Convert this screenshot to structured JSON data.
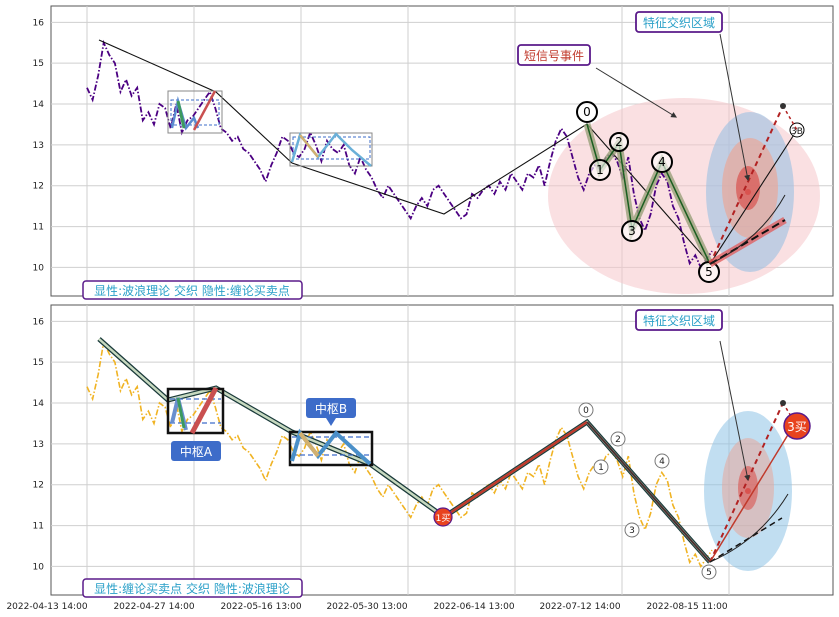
{
  "chart_data": [
    {
      "type": "line",
      "title": "",
      "legend_text": "显性:波浪理论 交织 隐性:缠论买卖点",
      "annotation_short_signal": "短信号事件",
      "annotation_region": "特征交织区域",
      "ylim": [
        9.3,
        16.4
      ],
      "yticks": [
        "10",
        "11",
        "12",
        "13",
        "14",
        "15",
        "16"
      ],
      "grid": true,
      "wave_labels": [
        "0",
        "1",
        "2",
        "3",
        "4",
        "5",
        "3B"
      ],
      "series": [
        {
          "style": "dashdot-purple",
          "x": [
            0,
            1,
            2,
            3,
            4,
            5,
            6,
            7,
            8,
            9,
            10,
            11,
            12,
            13,
            14,
            15,
            16,
            17,
            18,
            19,
            20,
            21,
            22,
            23,
            24,
            25,
            26,
            27,
            28,
            29,
            30,
            31,
            32,
            33,
            34,
            35,
            36,
            37,
            38,
            39,
            40,
            41,
            42,
            43,
            44,
            45,
            46,
            47,
            48,
            49,
            50,
            51,
            52,
            53,
            54,
            55,
            56,
            57,
            58,
            59,
            60,
            61,
            62,
            63,
            64,
            65,
            66,
            67,
            68,
            69,
            70,
            71,
            72,
            73,
            74,
            75,
            76,
            77,
            78,
            79,
            80,
            81,
            82,
            83,
            84,
            85,
            86,
            87,
            88,
            89,
            90,
            91,
            92,
            93,
            94,
            95,
            96,
            97,
            98,
            99,
            100,
            101,
            102,
            103,
            104,
            105,
            106,
            107,
            108,
            109,
            110,
            111,
            112
          ],
          "y": [
            14.4,
            14.1,
            14.7,
            15.5,
            15.2,
            15.0,
            14.3,
            14.6,
            14.2,
            14.4,
            13.6,
            13.8,
            13.5,
            14.0,
            13.9,
            13.4,
            14.0,
            13.3,
            13.6,
            13.7,
            13.9,
            14.1,
            14.3,
            13.9,
            13.4,
            13.3,
            13.1,
            13.2,
            12.9,
            12.8,
            12.6,
            12.4,
            12.1,
            12.5,
            12.8,
            13.2,
            13.1,
            12.8,
            12.7,
            12.9,
            13.3,
            13.0,
            12.6,
            13.1,
            12.9,
            12.8,
            13.0,
            12.5,
            12.3,
            12.7,
            12.4,
            12.2,
            11.9,
            11.7,
            12.0,
            11.8,
            11.6,
            11.4,
            11.2,
            11.5,
            11.7,
            11.5,
            11.9,
            12.0,
            11.8,
            11.6,
            11.4,
            11.2,
            11.3,
            11.8,
            11.7,
            11.9,
            12.0,
            11.8,
            12.1,
            11.9,
            12.3,
            12.1,
            11.9,
            12.3,
            12.2,
            12.5,
            12.0,
            12.6,
            13.1,
            13.4,
            13.2,
            12.7,
            12.2,
            11.9,
            12.3,
            12.5,
            12.4,
            12.7,
            12.8,
            12.6,
            12.2,
            12.7,
            11.8,
            11.2,
            10.9,
            11.3,
            12.0,
            12.3,
            12.1,
            11.5,
            11.2,
            10.6,
            10.1,
            10.3,
            10.0,
            10.2,
            10.4
          ]
        }
      ]
    },
    {
      "type": "line",
      "title": "",
      "legend_text": "显性:缠论买卖点 交织 隐性:波浪理论",
      "annotation_region": "特征交织区域",
      "box_a_label": "中枢A",
      "box_b_label": "中枢B",
      "buy_point_1": "1买",
      "buy_point_3": "3买",
      "ylim": [
        9.3,
        16.4
      ],
      "yticks": [
        "10",
        "11",
        "12",
        "13",
        "14",
        "15",
        "16"
      ],
      "grid": true,
      "wave_labels": [
        "0",
        "1",
        "2",
        "3",
        "4",
        "5"
      ],
      "xticks": [
        "2022-04-13 14:00",
        "2022-04-27 14:00",
        "2022-05-16 13:00",
        "2022-05-30 13:00",
        "2022-06-14 13:00",
        "2022-07-12 14:00",
        "2022-08-15 11:00"
      ]
    }
  ],
  "colors": {
    "purple_series": "#4b0082",
    "gold_series": "#f0b323",
    "label_border": "#5a1a8a",
    "label_text_blue": "#2aa0c8",
    "label_text_red": "#c0392b",
    "buy_point": "#e8431e",
    "box_fill": "#3d6cc9"
  }
}
